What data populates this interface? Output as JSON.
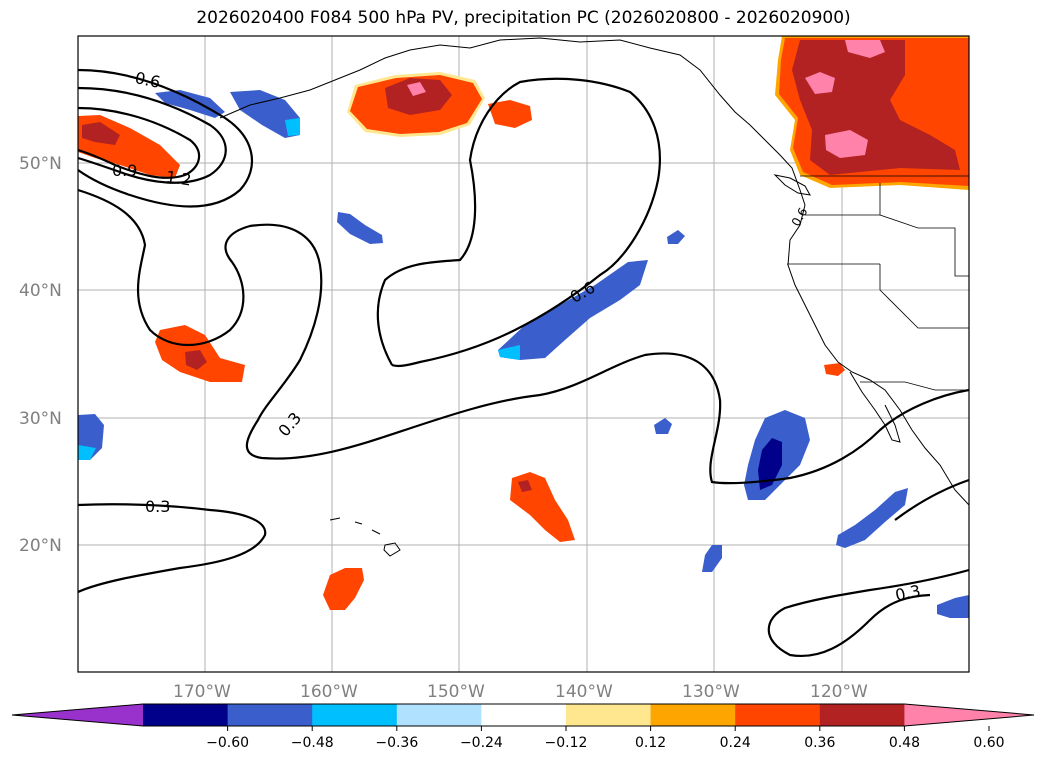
{
  "title": "2026020400 F084 500 hPa PV, precipitation PC (2026020800 - 2026020900)",
  "lat_labels": [
    "50°N",
    "40°N",
    "30°N",
    "20°N"
  ],
  "lon_labels": [
    "170°W",
    "160°W",
    "150°W",
    "140°W",
    "130°W",
    "120°W"
  ],
  "contour_labels": [
    "0.6",
    "0.9",
    "1.2",
    "0.3",
    "0.6",
    "0.3",
    "0.3",
    "0.6"
  ],
  "colorbar": {
    "ticks": [
      "−0.60",
      "−0.48",
      "−0.36",
      "−0.24",
      "−0.12",
      "0.12",
      "0.24",
      "0.36",
      "0.48",
      "0.60"
    ],
    "colors": [
      "#9932cc",
      "#00008b",
      "#3a5fcd",
      "#00bfff",
      "#b0e2ff",
      "#ffffff",
      "#fee78f",
      "#ffa500",
      "#ff4500",
      "#b22222",
      "#ff82ab"
    ]
  }
}
